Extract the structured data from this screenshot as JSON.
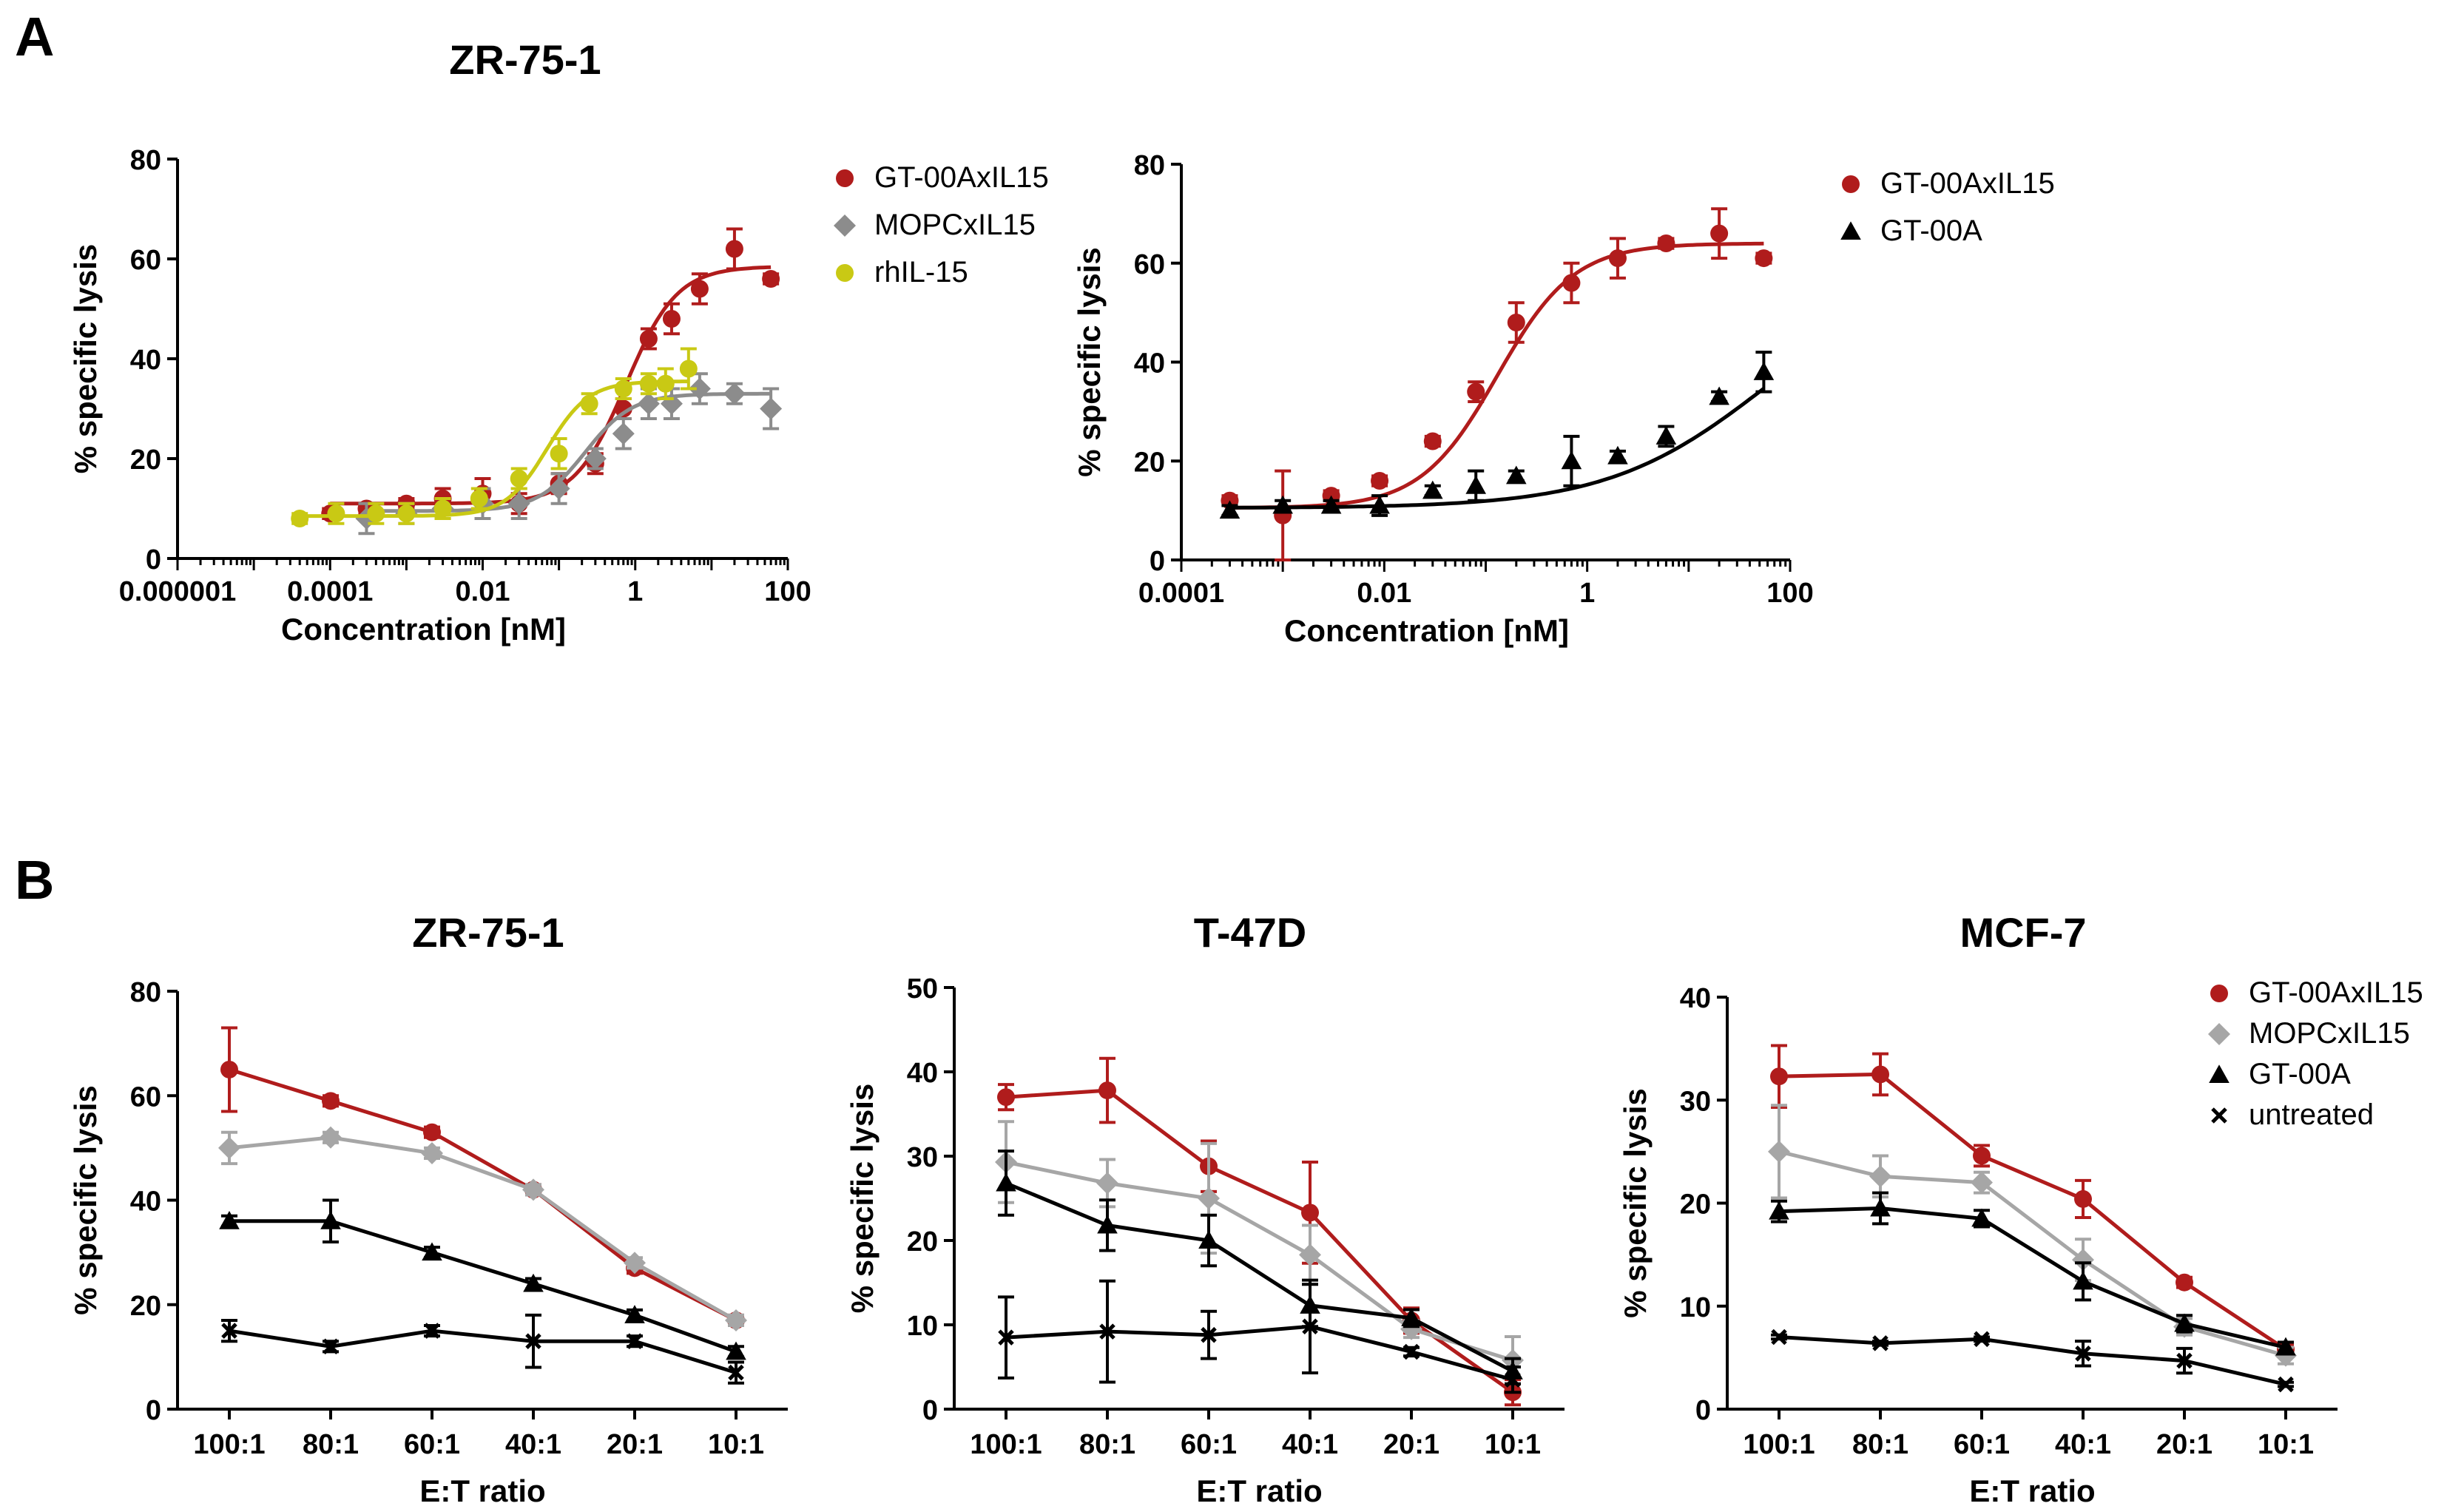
{
  "panels": {
    "A": "A",
    "B": "B"
  },
  "chart_data": [
    {
      "id": "A1",
      "type": "scatter",
      "scale": "log",
      "title": "ZR-75-1",
      "xlabel": "Concentration [nM]",
      "ylabel": "% specific lysis",
      "xlim": [
        1e-06,
        100
      ],
      "ylim": [
        0,
        80
      ],
      "xticks": [
        1e-06,
        0.0001,
        0.01,
        1,
        100
      ],
      "xtick_labels": [
        "0.000001",
        "0.0001",
        "0.01",
        "1",
        "100"
      ],
      "yticks": [
        0,
        20,
        40,
        60,
        80
      ],
      "ytick_labels": [
        "0",
        "20",
        "40",
        "60",
        "80"
      ],
      "legend": "right",
      "series": [
        {
          "name": "GT-00AxIL15",
          "color": "#B01C1C",
          "marker": "circle",
          "x": [
            0.0001,
            0.0003,
            0.001,
            0.003,
            0.01,
            0.03,
            0.1,
            0.3,
            0.7,
            1.5,
            3,
            7,
            20,
            60
          ],
          "y": [
            9,
            10,
            11,
            12,
            13,
            11,
            15,
            19,
            30,
            44,
            48,
            54,
            62,
            56
          ],
          "err": [
            1,
            1,
            1,
            2,
            3,
            2,
            2,
            2,
            2,
            2,
            3,
            3,
            4,
            1
          ],
          "fit": {
            "bottom": 11,
            "top": 58.5,
            "ec50": 0.75,
            "hill": 1.3
          }
        },
        {
          "name": "MOPCxIL15",
          "color": "#8C8C8C",
          "marker": "diamond",
          "x": [
            0.0003,
            0.001,
            0.003,
            0.01,
            0.03,
            0.1,
            0.3,
            0.7,
            1.5,
            3,
            7,
            20,
            60
          ],
          "y": [
            8,
            9,
            10,
            11,
            11,
            14,
            20,
            25,
            31,
            31,
            34,
            33,
            30
          ],
          "err": [
            3,
            2,
            2,
            3,
            3,
            3,
            2,
            3,
            3,
            3,
            3,
            2,
            4
          ],
          "fit": {
            "bottom": 9.5,
            "top": 33,
            "ec50": 0.22,
            "hill": 1.4
          }
        },
        {
          "name": "rhIL-15",
          "color": "#C9C914",
          "marker": "circle",
          "x": [
            4e-05,
            0.00012,
            0.0004,
            0.001,
            0.003,
            0.009,
            0.03,
            0.1,
            0.25,
            0.7,
            1.5,
            2.5,
            5
          ],
          "y": [
            8,
            9,
            9,
            9,
            10,
            12,
            16,
            21,
            31,
            34,
            35,
            35,
            38
          ],
          "err": [
            1,
            2,
            2,
            2,
            2,
            2,
            2,
            3,
            2,
            2,
            2,
            3,
            4
          ],
          "fit": {
            "bottom": 8.5,
            "top": 35.5,
            "ec50": 0.07,
            "hill": 1.6
          }
        }
      ]
    },
    {
      "id": "A2",
      "type": "scatter",
      "scale": "log",
      "title": "",
      "xlabel": "Concentration [nM]",
      "ylabel": "% specific lysis",
      "xlim": [
        0.0001,
        100
      ],
      "ylim": [
        0,
        80
      ],
      "xticks": [
        0.0001,
        0.01,
        1,
        100
      ],
      "xtick_labels": [
        "0.0001",
        "0.01",
        "1",
        "100"
      ],
      "yticks": [
        0,
        20,
        40,
        60,
        80
      ],
      "ytick_labels": [
        "0",
        "20",
        "40",
        "60",
        "80"
      ],
      "legend": "right",
      "series": [
        {
          "name": "GT-00AxIL15",
          "color": "#B01C1C",
          "marker": "circle",
          "x": [
            0.0003,
            0.001,
            0.003,
            0.009,
            0.03,
            0.08,
            0.2,
            0.7,
            2,
            6,
            20,
            55
          ],
          "y": [
            12,
            9,
            13,
            16,
            24,
            34,
            48,
            56,
            61,
            64,
            66,
            61
          ],
          "err": [
            1,
            9,
            1,
            1,
            1,
            2,
            4,
            4,
            4,
            1,
            5,
            1
          ],
          "fit": {
            "bottom": 10.5,
            "top": 64,
            "ec50": 0.13,
            "hill": 1.15
          }
        },
        {
          "name": "GT-00A",
          "color": "#000000",
          "marker": "triangle",
          "x": [
            0.0003,
            0.001,
            0.003,
            0.009,
            0.03,
            0.08,
            0.2,
            0.7,
            2,
            6,
            20,
            55
          ],
          "y": [
            10,
            11,
            11,
            11,
            14,
            15,
            17,
            20,
            21,
            25,
            33,
            38
          ],
          "err": [
            1,
            1,
            1,
            2,
            1,
            3,
            1,
            5,
            1,
            2,
            1,
            4
          ],
          "fit": {
            "bottom": 10.5,
            "top": 60,
            "ec50": 60,
            "hill": 0.55
          }
        }
      ]
    },
    {
      "id": "B1",
      "type": "line",
      "title": "ZR-75-1",
      "xlabel": "E:T ratio",
      "ylabel": "% specific lysis",
      "categories": [
        "100:1",
        "80:1",
        "60:1",
        "40:1",
        "20:1",
        "10:1"
      ],
      "ylim": [
        0,
        80
      ],
      "yticks": [
        0,
        20,
        40,
        60,
        80
      ],
      "ytick_labels": [
        "0",
        "20",
        "40",
        "60",
        "80"
      ],
      "legend": "none",
      "series": [
        {
          "name": "GT-00AxIL15",
          "color": "#B01C1C",
          "marker": "circle",
          "values": [
            65,
            59,
            53,
            42,
            27,
            17
          ],
          "err": [
            8,
            1,
            1,
            1,
            1,
            1
          ]
        },
        {
          "name": "MOPCxIL15",
          "color": "#A6A6A6",
          "marker": "diamond",
          "values": [
            50,
            52,
            49,
            42,
            28,
            17
          ],
          "err": [
            3,
            1,
            1,
            1,
            1,
            1
          ]
        },
        {
          "name": "GT-00A",
          "color": "#000000",
          "marker": "triangle",
          "values": [
            36,
            36,
            30,
            24,
            18,
            11
          ],
          "err": [
            1,
            4,
            1,
            1,
            1,
            1
          ]
        },
        {
          "name": "untreated",
          "color": "#000000",
          "marker": "cross",
          "values": [
            15,
            12,
            15,
            13,
            13,
            7
          ],
          "err": [
            2,
            1,
            1,
            5,
            1,
            2
          ]
        }
      ]
    },
    {
      "id": "B2",
      "type": "line",
      "title": "T-47D",
      "xlabel": "E:T ratio",
      "ylabel": "% specific lysis",
      "categories": [
        "100:1",
        "80:1",
        "60:1",
        "40:1",
        "20:1",
        "10:1"
      ],
      "ylim": [
        0,
        50
      ],
      "yticks": [
        0,
        10,
        20,
        30,
        40,
        50
      ],
      "ytick_labels": [
        "0",
        "10",
        "20",
        "30",
        "40",
        "50"
      ],
      "legend": "none",
      "series": [
        {
          "name": "GT-00AxIL15",
          "color": "#B01C1C",
          "marker": "circle",
          "values": [
            37,
            37.8,
            28.8,
            23.3,
            10.5,
            2
          ],
          "err": [
            1.5,
            3.8,
            3,
            6,
            1.5,
            1.5
          ]
        },
        {
          "name": "MOPCxIL15",
          "color": "#A6A6A6",
          "marker": "diamond",
          "values": [
            29.3,
            26.8,
            25,
            18.3,
            9.5,
            5.8
          ],
          "err": [
            4.8,
            2.8,
            6.5,
            3.5,
            1,
            2.8
          ]
        },
        {
          "name": "GT-00A",
          "color": "#000000",
          "marker": "triangle",
          "values": [
            26.8,
            21.8,
            20,
            12.3,
            10.8,
            4.5
          ],
          "err": [
            3.8,
            3,
            3,
            2.5,
            1,
            1.5
          ]
        },
        {
          "name": "untreated",
          "color": "#000000",
          "marker": "cross",
          "values": [
            8.5,
            9.2,
            8.8,
            9.8,
            6.8,
            3.5
          ],
          "err": [
            4.8,
            6,
            2.8,
            5.5,
            0.5,
            1.5
          ]
        }
      ]
    },
    {
      "id": "B3",
      "type": "line",
      "title": "MCF-7",
      "xlabel": "E:T ratio",
      "ylabel": "% specific lysis",
      "categories": [
        "100:1",
        "80:1",
        "60:1",
        "40:1",
        "20:1",
        "10:1"
      ],
      "ylim": [
        0,
        40
      ],
      "yticks": [
        0,
        10,
        20,
        30,
        40
      ],
      "ytick_labels": [
        "0",
        "10",
        "20",
        "30",
        "40"
      ],
      "legend": "right",
      "series": [
        {
          "name": "GT-00AxIL15",
          "color": "#B01C1C",
          "marker": "circle",
          "values": [
            32.3,
            32.5,
            24.6,
            20.4,
            12.3,
            5.8
          ],
          "err": [
            3,
            2,
            1,
            1.8,
            0.5,
            0.5
          ]
        },
        {
          "name": "MOPCxIL15",
          "color": "#A6A6A6",
          "marker": "diamond",
          "values": [
            25,
            22.6,
            22,
            14.5,
            8,
            5.2
          ],
          "err": [
            4.5,
            2,
            1,
            2,
            0.8,
            0.8
          ]
        },
        {
          "name": "GT-00A",
          "color": "#000000",
          "marker": "triangle",
          "values": [
            19.2,
            19.5,
            18.5,
            12.4,
            8.3,
            6
          ],
          "err": [
            1,
            1.5,
            0.8,
            1.8,
            0.8,
            0.5
          ]
        },
        {
          "name": "untreated",
          "color": "#000000",
          "marker": "cross",
          "values": [
            7,
            6.4,
            6.8,
            5.4,
            4.7,
            2.4
          ],
          "err": [
            0.2,
            0.2,
            0.2,
            1.2,
            1.2,
            0.2
          ]
        }
      ]
    }
  ]
}
